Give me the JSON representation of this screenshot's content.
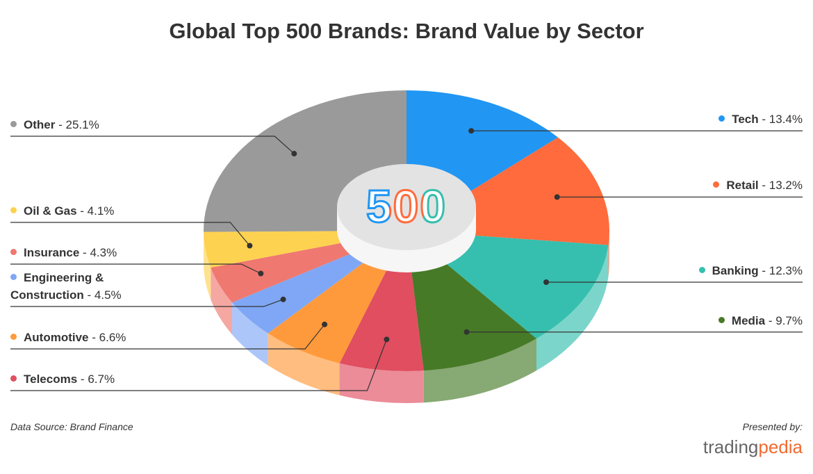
{
  "chart_data": {
    "type": "pie3d",
    "title": "Global Top 500 Brands: Brand Value by Sector",
    "center_label": "500",
    "separator": "-",
    "categories": [
      "Tech",
      "Retail",
      "Banking",
      "Media",
      "Telecoms",
      "Automotive",
      "Engineering & Construction",
      "Insurance",
      "Oil & Gas",
      "Other"
    ],
    "values": [
      13.4,
      13.2,
      12.3,
      9.7,
      6.7,
      6.6,
      4.5,
      4.3,
      4.1,
      25.1
    ],
    "value_labels": [
      "13.4%",
      "13.2%",
      "12.3%",
      "9.7%",
      "6.7%",
      "6.6%",
      "4.5%",
      "4.3%",
      "4.1%",
      "25.1%"
    ],
    "colors": [
      "#2196f3",
      "#ff6b3d",
      "#36bfae",
      "#467a27",
      "#e04e60",
      "#ff9a3c",
      "#7fa7f5",
      "#ef7870",
      "#fdd251",
      "#9a9a9a"
    ],
    "source": "Data Source: Brand Finance",
    "presented_by": "Presented by:",
    "logo": [
      "trading",
      "pedia"
    ]
  }
}
